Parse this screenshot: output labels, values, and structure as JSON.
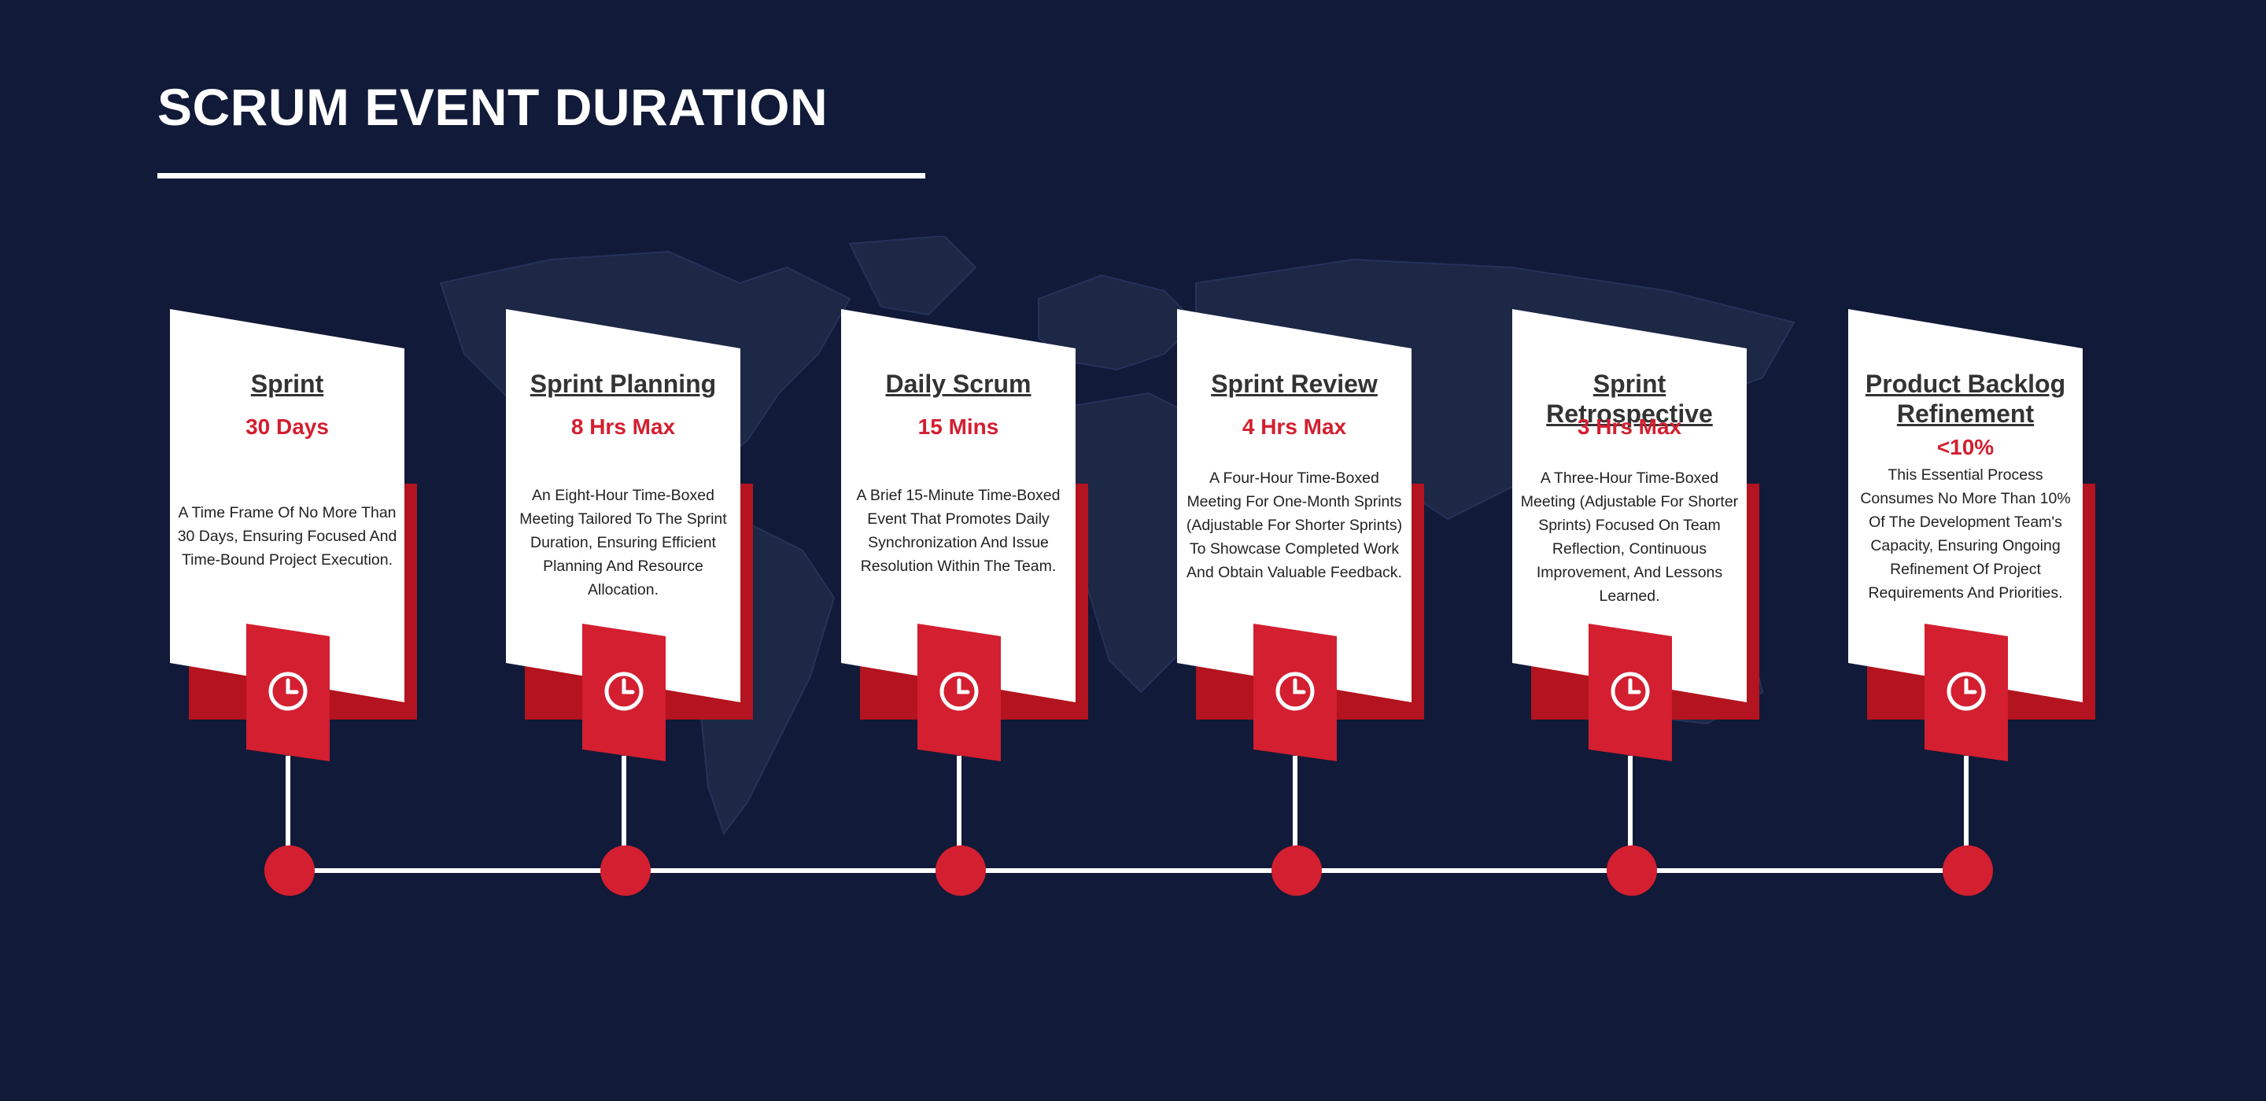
{
  "title": "SCRUM EVENT DURATION",
  "colors": {
    "background": "#111a38",
    "accent": "#d31f30",
    "card": "#ffffff"
  },
  "events": [
    {
      "name": "Sprint",
      "duration": "30 Days",
      "description": "A Time Frame Of No More Than 30 Days, Ensuring Focused And Time-Bound Project Execution.",
      "icon": "clock-icon"
    },
    {
      "name": "Sprint Planning",
      "duration": "8 Hrs Max",
      "description": "An Eight-Hour Time-Boxed Meeting Tailored To The Sprint Duration, Ensuring Efficient Planning And Resource Allocation.",
      "icon": "clock-icon"
    },
    {
      "name": "Daily Scrum",
      "duration": "15 Mins",
      "description": "A Brief 15-Minute Time-Boxed Event That Promotes Daily Synchronization And Issue Resolution Within The Team.",
      "icon": "clock-icon"
    },
    {
      "name": "Sprint Review",
      "duration": "4 Hrs Max",
      "description": "A Four-Hour Time-Boxed Meeting For One-Month Sprints (Adjustable For Shorter Sprints) To Showcase Completed Work And Obtain Valuable Feedback.",
      "icon": "clock-icon"
    },
    {
      "name": "Sprint Retrospective",
      "duration": "3 Hrs Max",
      "description": "A Three-Hour Time-Boxed Meeting (Adjustable For Shorter Sprints) Focused On Team Reflection, Continuous Improvement, And Lessons Learned.",
      "icon": "clock-icon"
    },
    {
      "name": "Product Backlog Refinement",
      "duration": "<10%",
      "description": "This Essential Process Consumes No More Than 10% Of The Development Team's Capacity, Ensuring Ongoing Refinement Of Project Requirements And Priorities.",
      "icon": "clock-icon"
    }
  ]
}
